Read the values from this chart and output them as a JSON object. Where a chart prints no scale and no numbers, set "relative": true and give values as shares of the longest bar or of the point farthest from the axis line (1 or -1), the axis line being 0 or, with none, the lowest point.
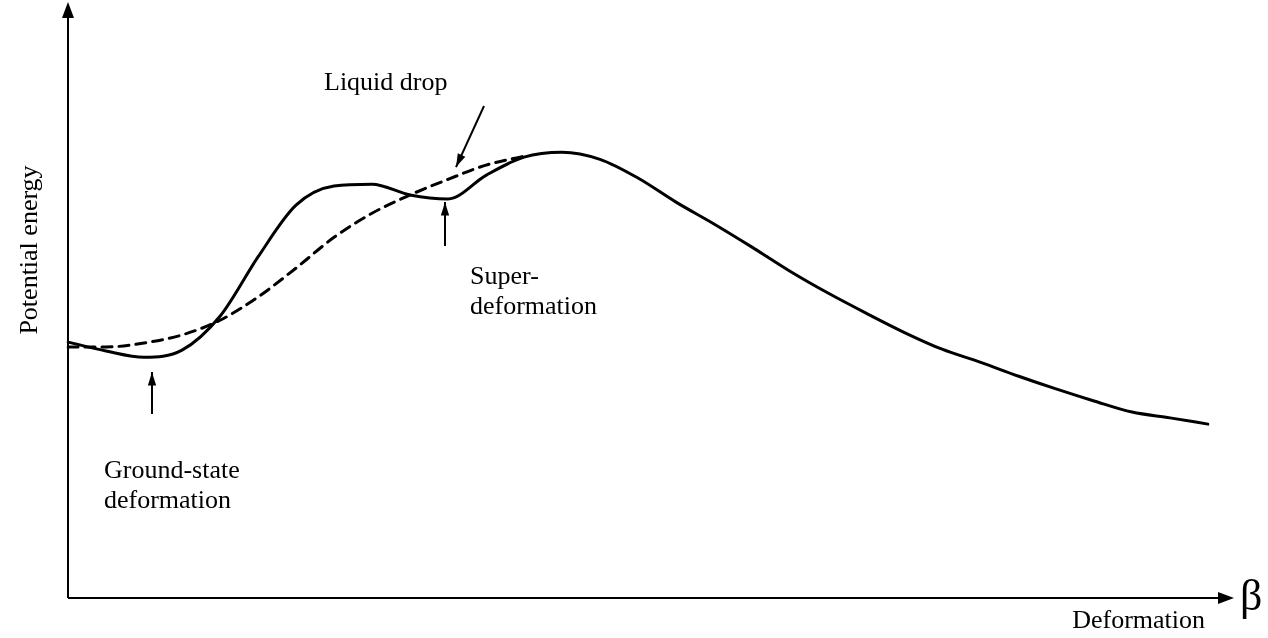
{
  "chart_data": {
    "type": "line",
    "relative": true,
    "xlabel": "Deformation",
    "ylabel": "Potential energy",
    "categories": [
      null,
      null,
      null,
      null,
      null,
      null,
      null,
      null,
      null,
      null,
      null,
      null,
      null,
      null,
      null,
      null,
      null,
      null,
      null,
      null,
      null,
      null,
      null,
      null,
      null,
      null,
      null,
      null,
      null,
      null,
      null
    ],
    "series": [
      {
        "color": "#000000",
        "line_style": "solid",
        "values": [
          0.574,
          0.554,
          0.54,
          0.556,
          0.632,
          0.765,
          0.881,
          0.924,
          0.928,
          0.904,
          0.895,
          0.948,
          0.989,
          1,
          0.984,
          0.942,
          0.888,
          0.839,
          0.787,
          0.733,
          0.684,
          0.639,
          0.596,
          0.558,
          0.529,
          0.498,
          0.469,
          0.442,
          0.417,
          0.404,
          0.39
        ]
      },
      {
        "name": "Liquid drop",
        "color": "#000000",
        "line_style": "dashed",
        "values": [
          0.563,
          0.563,
          0.572,
          0.59,
          0.623,
          0.675,
          0.74,
          0.809,
          0.863,
          0.904,
          0.939,
          0.971,
          0.991,
          null,
          null,
          null,
          null,
          null,
          null,
          null,
          null,
          null,
          null,
          null,
          null,
          null,
          null,
          null,
          null,
          null,
          null
        ]
      }
    ],
    "annotations": [
      "Super-\ndeformation",
      "Ground-state\ndeformation",
      "β"
    ]
  }
}
